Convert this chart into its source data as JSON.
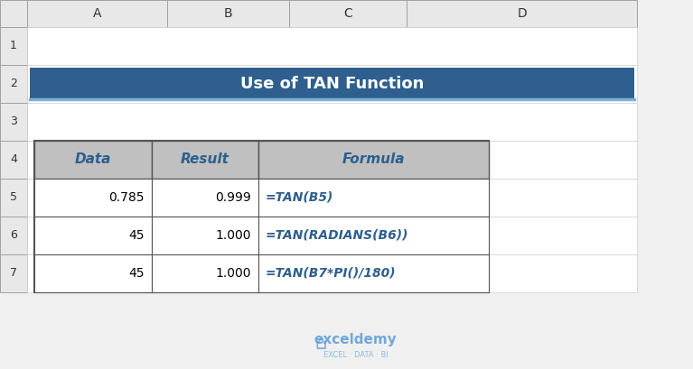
{
  "title": "Use of TAN Function",
  "title_bg": "#2E5F8E",
  "title_color": "#FFFFFF",
  "header_bg": "#C0C0C0",
  "header_color": "#2E5F8E",
  "cell_bg": "#FFFFFF",
  "grid_color": "#000000",
  "formula_color": "#2E5F8E",
  "col_headers": [
    "",
    "A",
    "B",
    "C",
    "D"
  ],
  "col_header_widths": [
    0.3,
    1.55,
    1.35,
    1.3,
    2.55
  ],
  "row_numbers": [
    "1",
    "2",
    "3",
    "4",
    "5",
    "6",
    "7"
  ],
  "table_headers": [
    "Data",
    "Result",
    "Formula"
  ],
  "rows": [
    [
      "0.785",
      "0.999",
      "=TAN(B5)"
    ],
    [
      "45",
      "1.000",
      "=TAN(RADIANS(B6))"
    ],
    [
      "45",
      "1.000",
      "=TAN(B7*PI()/180)"
    ]
  ],
  "outer_bg": "#F0F0F0",
  "watermark_color": "#5B9BD5",
  "watermark_text1": "exceldemy",
  "watermark_text2": "EXCEL · DATA · BI"
}
